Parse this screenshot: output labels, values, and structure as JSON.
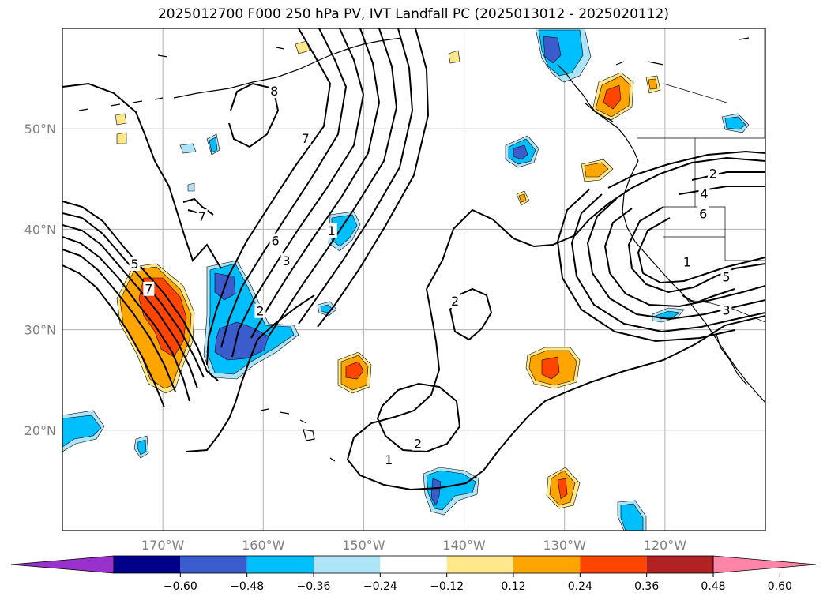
{
  "title": "2025012700 F000 250 hPa PV, IVT Landfall PC (2025013012 - 2025020112)",
  "colors": {
    "grid": "#b0b0b0",
    "purple": "#9932cc",
    "navy": "#00008b",
    "royal_blue": "#3a5ccc",
    "deep_sky": "#00bfff",
    "light_sky": "#aee4f8",
    "white": "#ffffff",
    "light_yellow": "#ffe88a",
    "orange": "#ffa500",
    "orange_red": "#ff4500",
    "firebrick": "#b22222",
    "pink": "#ff85a8"
  },
  "chart_data": {
    "type": "map",
    "map": {
      "lat_range": [
        10,
        60
      ],
      "lon_range": [
        -180,
        -110
      ],
      "lat_ticks": [
        {
          "value": 20,
          "label": "20°N"
        },
        {
          "value": 30,
          "label": "30°N"
        },
        {
          "value": 40,
          "label": "40°N"
        },
        {
          "value": 50,
          "label": "50°N"
        }
      ],
      "lon_ticks": [
        {
          "value": -170,
          "label": "170°W"
        },
        {
          "value": -160,
          "label": "160°W"
        },
        {
          "value": -150,
          "label": "150°W"
        },
        {
          "value": -140,
          "label": "140°W"
        },
        {
          "value": -130,
          "label": "130°W"
        },
        {
          "value": -120,
          "label": "120°W"
        }
      ],
      "grid": true
    },
    "colorbar": {
      "extend": "both",
      "levels": [
        -0.72,
        -0.6,
        -0.48,
        -0.36,
        -0.24,
        -0.12,
        0.12,
        0.24,
        0.36,
        0.48,
        0.6,
        0.72
      ],
      "colors": [
        "#9932cc",
        "#00008b",
        "#3a5ccc",
        "#00bfff",
        "#aee4f8",
        "#ffffff",
        "#ffe88a",
        "#ffa500",
        "#ff4500",
        "#b22222",
        "#ff85a8"
      ],
      "tick_labels": [
        "−0.60",
        "−0.48",
        "−0.36",
        "−0.24",
        "−0.12",
        "0.12",
        "0.24",
        "0.36",
        "0.48",
        "0.60"
      ]
    },
    "contour_labels": [
      {
        "text": "8",
        "lon": -158.9,
        "lat": 53.7
      },
      {
        "text": "7",
        "lon": -155.8,
        "lat": 49.0
      },
      {
        "text": "7",
        "lon": -166.1,
        "lat": 41.2
      },
      {
        "text": "6",
        "lon": -158.8,
        "lat": 38.8
      },
      {
        "text": "3",
        "lon": -157.7,
        "lat": 36.8
      },
      {
        "text": "1",
        "lon": -153.2,
        "lat": 39.8
      },
      {
        "text": "2",
        "lon": -160.3,
        "lat": 31.8
      },
      {
        "text": "5",
        "lon": -172.8,
        "lat": 36.5
      },
      {
        "text": "7",
        "lon": -171.4,
        "lat": 34.0
      },
      {
        "text": "2",
        "lon": -140.9,
        "lat": 32.8
      },
      {
        "text": "2",
        "lon": -144.6,
        "lat": 18.6
      },
      {
        "text": "1",
        "lon": -147.5,
        "lat": 17.0
      },
      {
        "text": "2",
        "lon": -115.2,
        "lat": 45.5
      },
      {
        "text": "4",
        "lon": -116.1,
        "lat": 43.5
      },
      {
        "text": "6",
        "lon": -116.2,
        "lat": 41.5
      },
      {
        "text": "1",
        "lon": -117.8,
        "lat": 36.7
      },
      {
        "text": "5",
        "lon": -113.9,
        "lat": 35.2
      },
      {
        "text": "3",
        "lon": -113.9,
        "lat": 31.9
      }
    ]
  }
}
